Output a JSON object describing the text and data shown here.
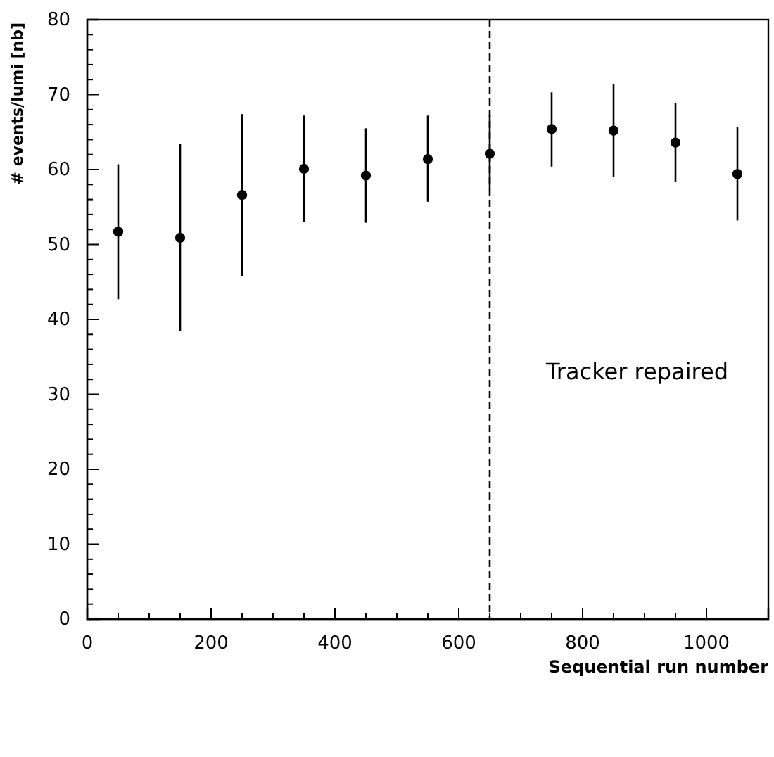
{
  "chart_data": {
    "type": "scatter",
    "xlabel": "Sequential run number",
    "ylabel": "# events/lumi [nb]",
    "x": [
      50,
      150,
      250,
      350,
      450,
      550,
      650,
      750,
      850,
      950,
      1050
    ],
    "values": [
      51.7,
      50.9,
      56.6,
      60.1,
      59.2,
      61.4,
      62.1,
      65.4,
      65.2,
      63.6,
      59.4
    ],
    "errors": [
      [
        42.7,
        60.7
      ],
      [
        38.4,
        63.4
      ],
      [
        45.8,
        67.4
      ],
      [
        53.0,
        67.2
      ],
      [
        52.9,
        65.5
      ],
      [
        55.7,
        67.2
      ],
      [
        57.3,
        67.2
      ],
      [
        60.4,
        70.3
      ],
      [
        59.0,
        71.4
      ],
      [
        58.4,
        68.9
      ],
      [
        53.2,
        65.7
      ]
    ],
    "color": "#000000",
    "marker": "circle",
    "xlim": [
      0,
      1100
    ],
    "xticks": [
      0,
      200,
      400,
      600,
      800,
      1000
    ],
    "ylim": [
      0,
      80
    ],
    "yticks": [
      0,
      10,
      20,
      30,
      40,
      50,
      60,
      70,
      80
    ],
    "ref_lines": [
      {
        "axis": "x",
        "value": 650,
        "label": "Tracker repaired",
        "line_style": "dashed",
        "color": "#000000"
      }
    ],
    "grid": false
  }
}
